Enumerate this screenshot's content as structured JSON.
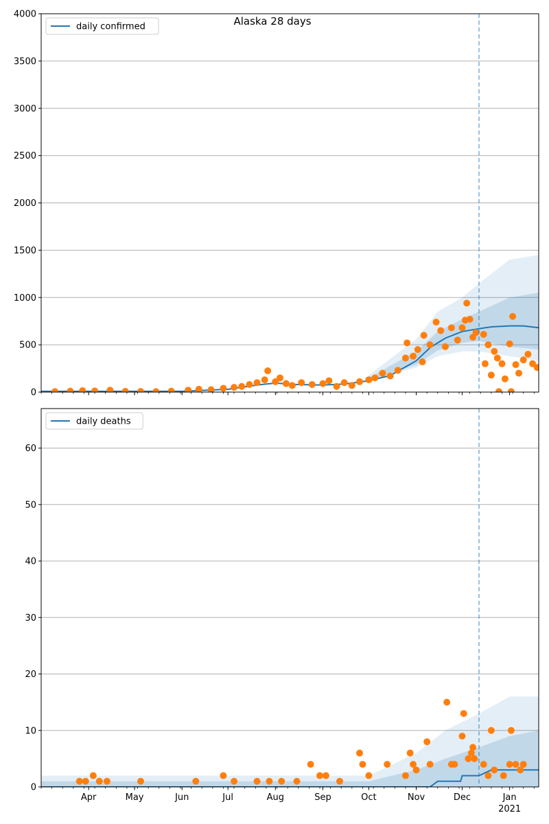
{
  "chart_data": [
    {
      "type": "line",
      "title": "Alaska 28 days",
      "legend": {
        "label": "daily confirmed",
        "placement": "top-left"
      },
      "grid": "y",
      "ylim": [
        0,
        4000
      ],
      "yticks": [
        0,
        500,
        1000,
        1500,
        2000,
        2500,
        3000,
        3500,
        4000
      ],
      "xlim": [
        "2020-03-01",
        "2021-01-20"
      ],
      "xticks": [
        {
          "date": "2020-04-01",
          "label": "Apr"
        },
        {
          "date": "2020-05-01",
          "label": "May"
        },
        {
          "date": "2020-06-01",
          "label": "Jun"
        },
        {
          "date": "2020-07-01",
          "label": "Jul"
        },
        {
          "date": "2020-08-01",
          "label": "Aug"
        },
        {
          "date": "2020-09-01",
          "label": "Sep"
        },
        {
          "date": "2020-10-01",
          "label": "Oct"
        },
        {
          "date": "2020-11-01",
          "label": "Nov"
        },
        {
          "date": "2020-12-01",
          "label": "Dec"
        },
        {
          "date": "2021-01-01",
          "label": "Jan",
          "sublabel": "2021"
        }
      ],
      "forecast_start": "2020-12-12",
      "colors": {
        "model": "#1f77b4",
        "observed": "#ff7f0e",
        "band": "#1f77b4",
        "grid": "#b0b0b0"
      },
      "model_line": [
        [
          "2020-03-01",
          8
        ],
        [
          "2020-06-01",
          8
        ],
        [
          "2020-07-01",
          30
        ],
        [
          "2020-07-20",
          75
        ],
        [
          "2020-08-01",
          95
        ],
        [
          "2020-08-15",
          80
        ],
        [
          "2020-09-01",
          75
        ],
        [
          "2020-09-15",
          85
        ],
        [
          "2020-10-01",
          120
        ],
        [
          "2020-10-15",
          175
        ],
        [
          "2020-11-01",
          330
        ],
        [
          "2020-11-10",
          470
        ],
        [
          "2020-11-20",
          570
        ],
        [
          "2020-12-01",
          640
        ],
        [
          "2020-12-12",
          670
        ],
        [
          "2020-12-20",
          690
        ],
        [
          "2021-01-01",
          700
        ],
        [
          "2021-01-10",
          700
        ],
        [
          "2021-01-20",
          680
        ]
      ],
      "band_outer": [
        [
          "2020-10-01",
          180,
          120
        ],
        [
          "2020-11-01",
          560,
          260
        ],
        [
          "2020-11-15",
          850,
          380
        ],
        [
          "2020-12-01",
          1000,
          430
        ],
        [
          "2020-12-12",
          1150,
          430
        ],
        [
          "2021-01-01",
          1400,
          380
        ],
        [
          "2021-01-20",
          1450,
          330
        ]
      ],
      "band_inner": [
        [
          "2020-10-01",
          150,
          120
        ],
        [
          "2020-11-01",
          430,
          290
        ],
        [
          "2020-11-15",
          640,
          440
        ],
        [
          "2020-12-01",
          770,
          520
        ],
        [
          "2020-12-12",
          850,
          540
        ],
        [
          "2021-01-01",
          1000,
          480
        ],
        [
          "2021-01-20",
          1050,
          450
        ]
      ],
      "points": [
        [
          "2020-03-10",
          5
        ],
        [
          "2020-03-20",
          10
        ],
        [
          "2020-03-28",
          15
        ],
        [
          "2020-04-05",
          12
        ],
        [
          "2020-04-15",
          20
        ],
        [
          "2020-04-25",
          8
        ],
        [
          "2020-05-05",
          6
        ],
        [
          "2020-05-15",
          5
        ],
        [
          "2020-05-25",
          10
        ],
        [
          "2020-06-05",
          20
        ],
        [
          "2020-06-12",
          30
        ],
        [
          "2020-06-20",
          25
        ],
        [
          "2020-06-28",
          40
        ],
        [
          "2020-07-05",
          50
        ],
        [
          "2020-07-10",
          60
        ],
        [
          "2020-07-15",
          80
        ],
        [
          "2020-07-20",
          100
        ],
        [
          "2020-07-25",
          130
        ],
        [
          "2020-07-27",
          225
        ],
        [
          "2020-08-01",
          110
        ],
        [
          "2020-08-04",
          150
        ],
        [
          "2020-08-08",
          90
        ],
        [
          "2020-08-12",
          70
        ],
        [
          "2020-08-18",
          100
        ],
        [
          "2020-08-25",
          80
        ],
        [
          "2020-09-01",
          90
        ],
        [
          "2020-09-05",
          120
        ],
        [
          "2020-09-10",
          60
        ],
        [
          "2020-09-15",
          100
        ],
        [
          "2020-09-20",
          70
        ],
        [
          "2020-09-25",
          110
        ],
        [
          "2020-10-01",
          130
        ],
        [
          "2020-10-05",
          150
        ],
        [
          "2020-10-10",
          200
        ],
        [
          "2020-10-15",
          170
        ],
        [
          "2020-10-20",
          230
        ],
        [
          "2020-10-25",
          360
        ],
        [
          "2020-10-26",
          520
        ],
        [
          "2020-10-30",
          380
        ],
        [
          "2020-11-02",
          450
        ],
        [
          "2020-11-05",
          320
        ],
        [
          "2020-11-06",
          600
        ],
        [
          "2020-11-10",
          500
        ],
        [
          "2020-11-14",
          740
        ],
        [
          "2020-11-17",
          650
        ],
        [
          "2020-11-20",
          480
        ],
        [
          "2020-11-24",
          680
        ],
        [
          "2020-11-28",
          550
        ],
        [
          "2020-12-01",
          680
        ],
        [
          "2020-12-03",
          760
        ],
        [
          "2020-12-04",
          940
        ],
        [
          "2020-12-06",
          770
        ],
        [
          "2020-12-08",
          580
        ],
        [
          "2020-12-10",
          630
        ],
        [
          "2020-12-15",
          610
        ],
        [
          "2020-12-16",
          300
        ],
        [
          "2020-12-18",
          500
        ],
        [
          "2020-12-20",
          180
        ],
        [
          "2020-12-22",
          430
        ],
        [
          "2020-12-24",
          360
        ],
        [
          "2020-12-25",
          5
        ],
        [
          "2020-12-27",
          300
        ],
        [
          "2020-12-29",
          140
        ],
        [
          "2021-01-01",
          510
        ],
        [
          "2021-01-02",
          5
        ],
        [
          "2021-01-03",
          800
        ],
        [
          "2021-01-05",
          290
        ],
        [
          "2021-01-07",
          200
        ],
        [
          "2021-01-10",
          340
        ],
        [
          "2021-01-13",
          400
        ],
        [
          "2021-01-16",
          300
        ],
        [
          "2021-01-19",
          260
        ]
      ]
    },
    {
      "type": "line",
      "title": "",
      "legend": {
        "label": "daily deaths",
        "placement": "top-left"
      },
      "grid": "y",
      "ylim": [
        0,
        67
      ],
      "yticks": [
        0,
        10,
        20,
        30,
        40,
        50,
        60
      ],
      "xlim": [
        "2020-03-01",
        "2021-01-20"
      ],
      "xticks": [
        {
          "date": "2020-04-01",
          "label": "Apr"
        },
        {
          "date": "2020-05-01",
          "label": "May"
        },
        {
          "date": "2020-06-01",
          "label": "Jun"
        },
        {
          "date": "2020-07-01",
          "label": "Jul"
        },
        {
          "date": "2020-08-01",
          "label": "Aug"
        },
        {
          "date": "2020-09-01",
          "label": "Sep"
        },
        {
          "date": "2020-10-01",
          "label": "Oct"
        },
        {
          "date": "2020-11-01",
          "label": "Nov"
        },
        {
          "date": "2020-12-01",
          "label": "Dec"
        },
        {
          "date": "2021-01-01",
          "label": "Jan",
          "sublabel": "2021"
        }
      ],
      "forecast_start": "2020-12-12",
      "colors": {
        "model": "#1f77b4",
        "observed": "#ff7f0e",
        "band": "#1f77b4",
        "grid": "#b0b0b0"
      },
      "model_line": [
        [
          "2020-03-01",
          0
        ],
        [
          "2020-11-10",
          0
        ],
        [
          "2020-11-15",
          1
        ],
        [
          "2020-11-30",
          1
        ],
        [
          "2020-12-01",
          2
        ],
        [
          "2020-12-12",
          2
        ],
        [
          "2020-12-20",
          3
        ],
        [
          "2021-01-10",
          3
        ],
        [
          "2021-01-20",
          3
        ]
      ],
      "band_outer": [
        [
          "2020-03-01",
          2,
          0
        ],
        [
          "2020-10-01",
          2,
          0
        ],
        [
          "2020-11-01",
          6,
          0
        ],
        [
          "2020-11-20",
          10,
          0
        ],
        [
          "2020-12-12",
          13,
          0
        ],
        [
          "2021-01-01",
          16,
          0
        ],
        [
          "2021-01-20",
          16,
          0
        ]
      ],
      "band_inner": [
        [
          "2020-03-01",
          1,
          0
        ],
        [
          "2020-10-01",
          1,
          0
        ],
        [
          "2020-11-01",
          3,
          0
        ],
        [
          "2020-11-20",
          5,
          0
        ],
        [
          "2020-12-12",
          7,
          0
        ],
        [
          "2021-01-01",
          9,
          0
        ],
        [
          "2021-01-20",
          10,
          0
        ]
      ],
      "points": [
        [
          "2020-03-26",
          1
        ],
        [
          "2020-03-30",
          1
        ],
        [
          "2020-04-04",
          2
        ],
        [
          "2020-04-08",
          1
        ],
        [
          "2020-04-13",
          1
        ],
        [
          "2020-05-05",
          1
        ],
        [
          "2020-06-10",
          1
        ],
        [
          "2020-06-28",
          2
        ],
        [
          "2020-07-05",
          1
        ],
        [
          "2020-07-20",
          1
        ],
        [
          "2020-07-28",
          1
        ],
        [
          "2020-08-05",
          1
        ],
        [
          "2020-08-15",
          1
        ],
        [
          "2020-08-24",
          4
        ],
        [
          "2020-08-30",
          2
        ],
        [
          "2020-09-03",
          2
        ],
        [
          "2020-09-12",
          1
        ],
        [
          "2020-09-25",
          6
        ],
        [
          "2020-09-27",
          4
        ],
        [
          "2020-10-01",
          2
        ],
        [
          "2020-10-13",
          4
        ],
        [
          "2020-10-25",
          2
        ],
        [
          "2020-10-28",
          6
        ],
        [
          "2020-10-30",
          4
        ],
        [
          "2020-11-01",
          3
        ],
        [
          "2020-11-08",
          8
        ],
        [
          "2020-11-10",
          4
        ],
        [
          "2020-11-21",
          15
        ],
        [
          "2020-11-24",
          4
        ],
        [
          "2020-11-26",
          4
        ],
        [
          "2020-12-01",
          9
        ],
        [
          "2020-12-02",
          13
        ],
        [
          "2020-12-05",
          5
        ],
        [
          "2020-12-07",
          6
        ],
        [
          "2020-12-08",
          7
        ],
        [
          "2020-12-09",
          5
        ],
        [
          "2020-12-15",
          4
        ],
        [
          "2020-12-18",
          2
        ],
        [
          "2020-12-20",
          10
        ],
        [
          "2020-12-22",
          3
        ],
        [
          "2020-12-28",
          2
        ],
        [
          "2021-01-01",
          4
        ],
        [
          "2021-01-02",
          10
        ],
        [
          "2021-01-05",
          4
        ],
        [
          "2021-01-08",
          3
        ],
        [
          "2021-01-10",
          4
        ]
      ]
    }
  ]
}
